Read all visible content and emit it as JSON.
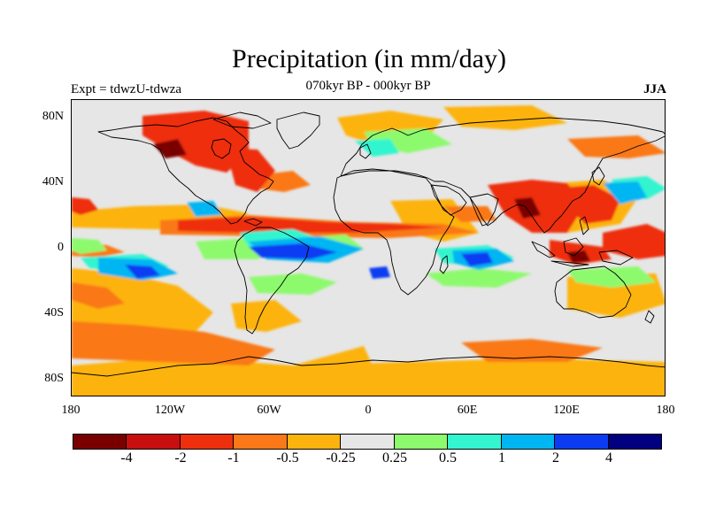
{
  "title": "Precipitation (in mm/day)",
  "subtitle_left": "Expt = tdwzU-tdwza",
  "subtitle_center": "070kyr BP - 000kyr BP",
  "subtitle_right": "JJA",
  "lat_labels": [
    "80N",
    "40N",
    "0",
    "40S",
    "80S"
  ],
  "lon_labels": [
    "180",
    "120W",
    "60W",
    "0",
    "60E",
    "120E",
    "180"
  ],
  "colorbar": {
    "colors": [
      "#7a0000",
      "#c80e0e",
      "#ee2f0e",
      "#fa7818",
      "#fdb30d",
      "#e6e6e6",
      "#8dfa6e",
      "#33f5d0",
      "#00b6f2",
      "#0c3cf2",
      "#000080"
    ],
    "labels": [
      "-4",
      "-2",
      "-1",
      "-0.5",
      "-0.25",
      "0.25",
      "0.5",
      "1",
      "2",
      "4"
    ]
  },
  "land_color": "#e6e6e6",
  "coastline_color": "#000000"
}
